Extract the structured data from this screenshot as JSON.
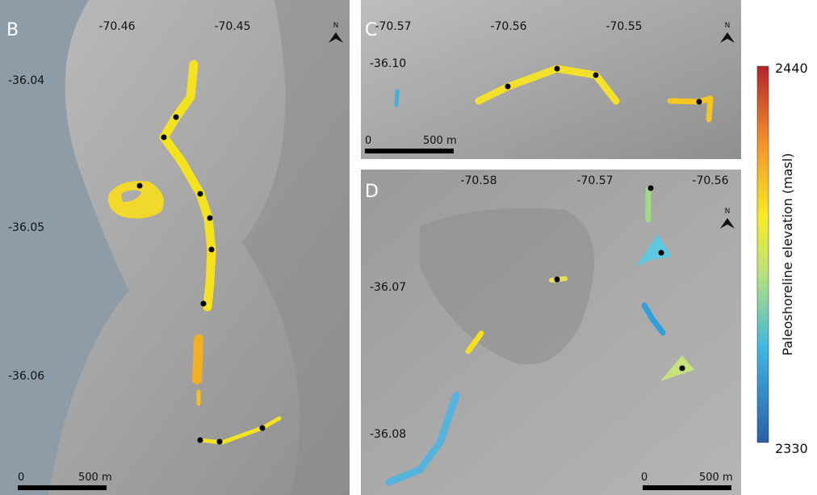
{
  "panels": [
    {
      "label": "B",
      "x_ticks": [
        "-70.46",
        "-70.45"
      ],
      "y_ticks": [
        "-36.04",
        "-36.05",
        "-36.06"
      ],
      "north": "N",
      "scale_zero": "0",
      "scale_length": "500 m"
    },
    {
      "label": "C",
      "x_ticks": [
        "-70.57",
        "-70.56",
        "-70.55"
      ],
      "y_ticks": [
        "-36.10"
      ],
      "north": "N",
      "scale_zero": "0",
      "scale_length": "500 m"
    },
    {
      "label": "D",
      "x_ticks": [
        "-70.58",
        "-70.57",
        "-70.56"
      ],
      "y_ticks": [
        "-36.07",
        "-36.08"
      ],
      "north": "N",
      "scale_zero": "0",
      "scale_length": "500 m"
    }
  ],
  "colorbar": {
    "title": "Paleoshoreline elevation (masl)",
    "max_label": "2440",
    "min_label": "2330"
  }
}
